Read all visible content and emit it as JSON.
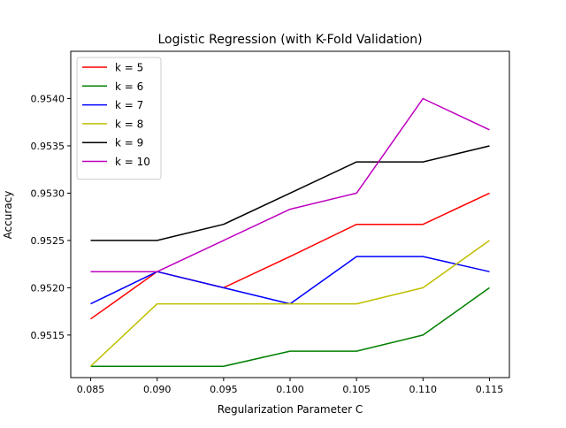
{
  "chart_data": {
    "type": "line",
    "title": "Logistic Regression (with K-Fold Validation)",
    "xlabel": "Regularization Parameter C",
    "ylabel": "Accuracy",
    "x": [
      0.085,
      0.09,
      0.095,
      0.1,
      0.105,
      0.11,
      0.115
    ],
    "x_tick_labels": [
      "0.085",
      "0.090",
      "0.095",
      "0.100",
      "0.105",
      "0.110",
      "0.115"
    ],
    "y_ticks": [
      0.9515,
      0.952,
      0.9525,
      0.953,
      0.9535,
      0.954
    ],
    "y_tick_labels": [
      "0.9515",
      "0.9520",
      "0.9525",
      "0.9530",
      "0.9535",
      "0.9540"
    ],
    "xlim": [
      0.0835,
      0.1165
    ],
    "ylim": [
      0.95105,
      0.9545
    ],
    "grid": false,
    "legend_position": "top-left",
    "series": [
      {
        "name": "k = 5",
        "color": "#ff0000",
        "values": [
          0.95167,
          0.95217,
          0.952,
          0.95233,
          0.95267,
          0.95267,
          0.953
        ]
      },
      {
        "name": "k = 6",
        "color": "#008000",
        "values": [
          0.95117,
          0.95117,
          0.95117,
          0.95133,
          0.95133,
          0.9515,
          0.952
        ]
      },
      {
        "name": "k = 7",
        "color": "#0000ff",
        "values": [
          0.95183,
          0.95217,
          0.952,
          0.95183,
          0.95233,
          0.95233,
          0.95217
        ]
      },
      {
        "name": "k = 8",
        "color": "#bfbf00",
        "values": [
          0.95117,
          0.95183,
          0.95183,
          0.95183,
          0.95183,
          0.952,
          0.9525
        ]
      },
      {
        "name": "k = 9",
        "color": "#000000",
        "values": [
          0.9525,
          0.9525,
          0.95267,
          0.953,
          0.95333,
          0.95333,
          0.9535
        ]
      },
      {
        "name": "k = 10",
        "color": "#bf00bf",
        "values": [
          0.95217,
          0.95217,
          0.9525,
          0.95283,
          0.953,
          0.954,
          0.95367
        ]
      }
    ]
  }
}
